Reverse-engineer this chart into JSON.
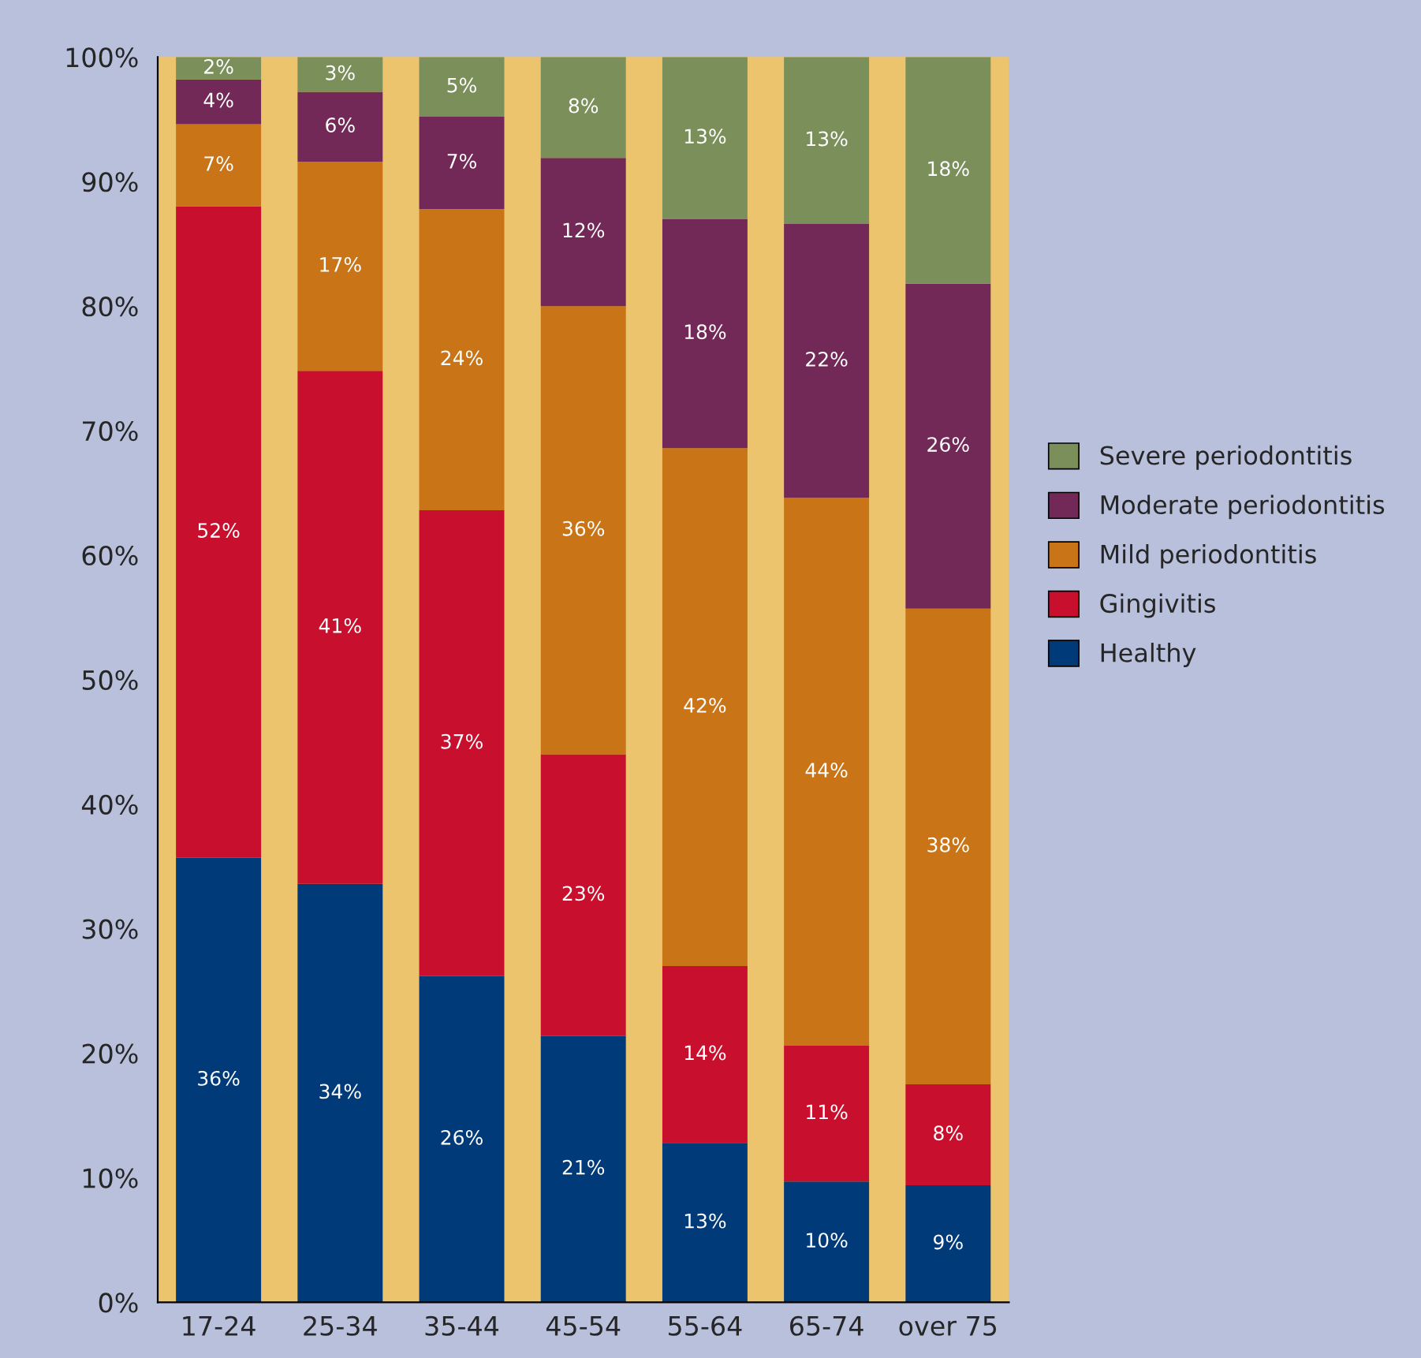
{
  "chart_data": {
    "type": "bar",
    "stacked": true,
    "categories": [
      "17-24",
      "25-34",
      "35-44",
      "45-54",
      "55-64",
      "65-74",
      "over 75"
    ],
    "series": [
      {
        "name": "Healthy",
        "color": "#003a78",
        "values": [
          35.7,
          33.6,
          26.2,
          21.4,
          12.8,
          9.7,
          9.4
        ],
        "value_labels": [
          "36%",
          "34%",
          "26%",
          "21%",
          "13%",
          "10%",
          "9%"
        ]
      },
      {
        "name": "Gingivitis",
        "color": "#c8102e",
        "values": [
          52.3,
          41.2,
          37.4,
          22.6,
          14.2,
          10.9,
          8.1
        ],
        "value_labels": [
          "52%",
          "41%",
          "37%",
          "23%",
          "14%",
          "11%",
          "8%"
        ]
      },
      {
        "name": "Mild periodontitis",
        "color": "#c87417",
        "values": [
          6.6,
          16.8,
          24.2,
          36.0,
          41.6,
          44.0,
          38.2
        ],
        "value_labels": [
          "7%",
          "17%",
          "24%",
          "36%",
          "42%",
          "44%",
          "38%"
        ]
      },
      {
        "name": "Moderate periodontitis",
        "color": "#722957",
        "values": [
          3.6,
          5.6,
          7.4,
          11.9,
          18.4,
          22.0,
          26.1
        ],
        "value_labels": [
          "4%",
          "6%",
          "7%",
          "12%",
          "18%",
          "22%",
          "26%"
        ]
      },
      {
        "name": "Severe periodontitis",
        "color": "#7a8f5a",
        "values": [
          1.8,
          2.8,
          4.8,
          8.1,
          13.0,
          13.4,
          18.2
        ],
        "value_labels": [
          "2%",
          "3%",
          "5%",
          "8%",
          "13%",
          "13%",
          "18%"
        ]
      }
    ],
    "ylim": [
      0,
      100
    ],
    "yticks": [
      {
        "value": 0,
        "label": "0%"
      },
      {
        "value": 10,
        "label": "10%"
      },
      {
        "value": 20,
        "label": "20%"
      },
      {
        "value": 30,
        "label": "30%"
      },
      {
        "value": 40,
        "label": "40%"
      },
      {
        "value": 50,
        "label": "50%"
      },
      {
        "value": 60,
        "label": "60%"
      },
      {
        "value": 70,
        "label": "70%"
      },
      {
        "value": 80,
        "label": "80%"
      },
      {
        "value": 90,
        "label": "90%"
      },
      {
        "value": 100,
        "label": "100%"
      }
    ],
    "grid": false,
    "legend": "right"
  }
}
